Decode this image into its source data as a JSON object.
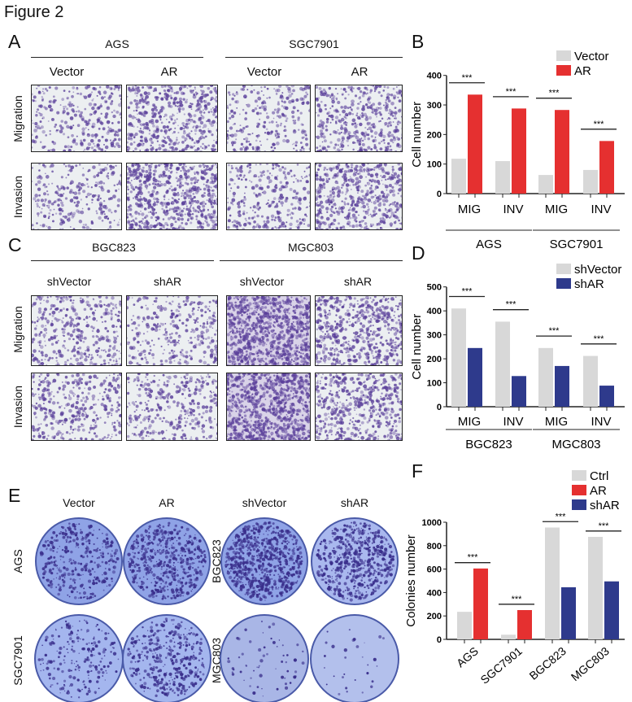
{
  "figure_title": "Figure 2",
  "panels": {
    "A": {
      "label": "A",
      "groups": [
        "AGS",
        "SGC7901"
      ],
      "columns": [
        "Vector",
        "AR",
        "Vector",
        "AR"
      ],
      "rows": [
        "Migration",
        "Invasion"
      ]
    },
    "C": {
      "label": "C",
      "groups": [
        "BGC823",
        "MGC803"
      ],
      "columns": [
        "shVector",
        "shAR",
        "shVector",
        "shAR"
      ],
      "rows": [
        "Migration",
        "Invasion"
      ]
    },
    "E": {
      "label": "E",
      "columns": [
        "Vector",
        "AR",
        "shVector",
        "shAR"
      ],
      "rows_left": [
        "AGS",
        "SGC7901"
      ],
      "rows_right": [
        "BGC823",
        "MGC803"
      ]
    },
    "B": {
      "label": "B"
    },
    "D": {
      "label": "D"
    },
    "F": {
      "label": "F"
    }
  },
  "colors": {
    "control": "#d8d8d8",
    "AR": "#e53030",
    "shAR": "#2e3a8c",
    "stain": "#5a3f9a",
    "dish": "#6f84d8"
  },
  "chart_data": [
    {
      "panel": "B",
      "type": "bar",
      "ylabel": "Cell number",
      "ylim": [
        0,
        400
      ],
      "yticks": [
        0,
        100,
        200,
        300,
        400
      ],
      "categories": [
        "MIG",
        "INV",
        "MIG",
        "INV"
      ],
      "groups": [
        "AGS",
        "SGC7901"
      ],
      "series": [
        {
          "name": "Vector",
          "color": "#d8d8d8",
          "values": [
            118,
            110,
            63,
            80
          ]
        },
        {
          "name": "AR",
          "color": "#e53030",
          "values": [
            335,
            288,
            283,
            178
          ]
        }
      ],
      "significance": [
        "***",
        "***",
        "***",
        "***"
      ],
      "legend": "top-right"
    },
    {
      "panel": "D",
      "type": "bar",
      "ylabel": "Cell number",
      "ylim": [
        0,
        500
      ],
      "yticks": [
        0,
        100,
        200,
        300,
        400,
        500
      ],
      "categories": [
        "MIG",
        "INV",
        "MIG",
        "INV"
      ],
      "groups": [
        "BGC823",
        "MGC803"
      ],
      "series": [
        {
          "name": "shVector",
          "color": "#d8d8d8",
          "values": [
            410,
            355,
            245,
            212
          ]
        },
        {
          "name": "shAR",
          "color": "#2e3a8c",
          "values": [
            245,
            128,
            170,
            88
          ]
        }
      ],
      "significance": [
        "***",
        "***",
        "***",
        "***"
      ],
      "legend": "top-right"
    },
    {
      "panel": "F",
      "type": "bar",
      "ylabel": "Colonies number",
      "ylim": [
        0,
        1000
      ],
      "yticks": [
        0,
        200,
        400,
        600,
        800,
        1000
      ],
      "categories": [
        "AGS",
        "SGC7901",
        "BGC823",
        "MGC803"
      ],
      "series": [
        {
          "name": "Ctrl",
          "color": "#d8d8d8",
          "values": [
            235,
            40,
            955,
            875
          ]
        },
        {
          "name": "AR",
          "color": "#e53030",
          "values": [
            605,
            250,
            null,
            null
          ]
        },
        {
          "name": "shAR",
          "color": "#2e3a8c",
          "values": [
            null,
            null,
            445,
            495
          ]
        }
      ],
      "significance": [
        "***",
        "***",
        "***",
        "***"
      ],
      "legend": "top-right"
    }
  ]
}
